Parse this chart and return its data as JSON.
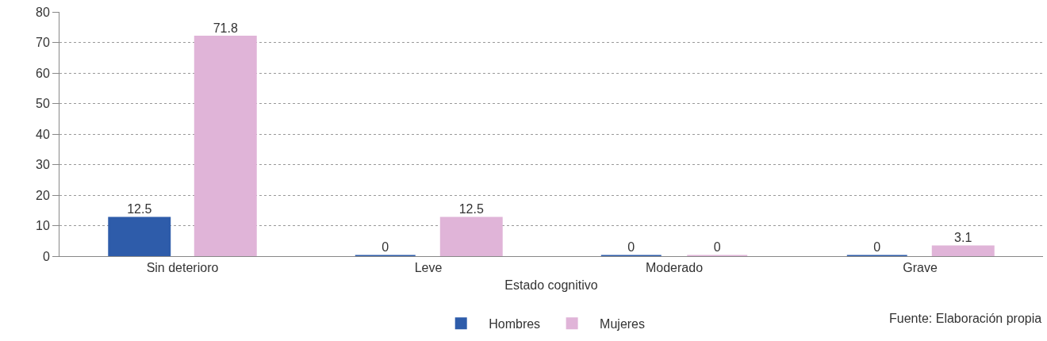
{
  "chart_data": {
    "type": "bar",
    "xlabel": "Estado cognitivo",
    "categories": [
      "Sin deterioro",
      "Leve",
      "Moderado",
      "Grave"
    ],
    "series": [
      {
        "name": "Hombres",
        "color": "#2e5caa",
        "values": [
          12.5,
          0,
          0,
          0
        ]
      },
      {
        "name": "Mujeres",
        "color": "#e0b4d8",
        "values": [
          71.8,
          12.5,
          0,
          3.1
        ]
      }
    ],
    "ylim": [
      0,
      80
    ],
    "yticks": [
      0,
      10,
      20,
      30,
      40,
      50,
      60,
      70,
      80
    ],
    "grid": "y",
    "legend": "bottom",
    "data_labels": true,
    "annotations": [
      "Fuente: Elaboración propia"
    ]
  }
}
